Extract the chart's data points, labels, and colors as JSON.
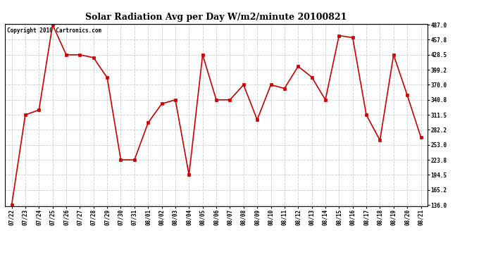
{
  "title": "Solar Radiation Avg per Day W/m2/minute 20100821",
  "copyright": "Copyright 2010 Cartronics.com",
  "x_labels": [
    "07/22",
    "07/23",
    "07/24",
    "07/25",
    "07/26",
    "07/27",
    "07/28",
    "07/29",
    "07/30",
    "07/31",
    "08/01",
    "08/02",
    "08/03",
    "08/04",
    "08/05",
    "08/06",
    "08/07",
    "08/08",
    "08/09",
    "08/10",
    "08/11",
    "08/12",
    "08/13",
    "08/14",
    "08/15",
    "08/16",
    "08/17",
    "08/18",
    "08/19",
    "08/20",
    "08/21"
  ],
  "y_values": [
    136.0,
    311.5,
    321.0,
    487.0,
    428.5,
    428.5,
    423.0,
    384.0,
    223.8,
    223.8,
    296.0,
    333.0,
    340.8,
    194.5,
    428.5,
    340.8,
    340.8,
    370.0,
    302.0,
    370.0,
    363.0,
    406.0,
    385.0,
    340.8,
    466.0,
    462.0,
    311.5,
    262.0,
    428.5,
    350.0,
    268.0
  ],
  "line_color": "#cc0000",
  "marker": "s",
  "marker_size": 2.5,
  "bg_color": "#ffffff",
  "grid_color": "#cccccc",
  "y_min": 136.0,
  "y_max": 487.0,
  "y_ticks": [
    136.0,
    165.2,
    194.5,
    223.8,
    253.0,
    282.2,
    311.5,
    340.8,
    370.0,
    399.2,
    428.5,
    457.8,
    487.0
  ]
}
